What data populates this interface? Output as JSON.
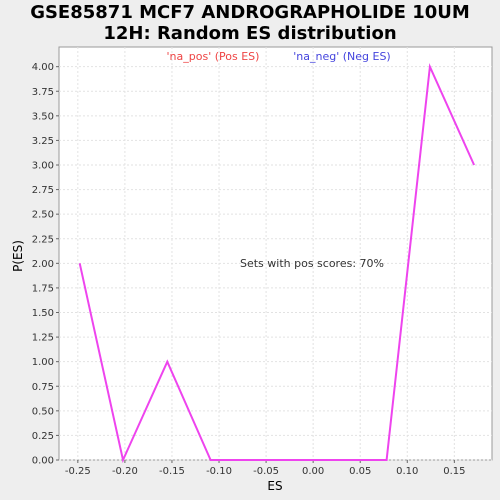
{
  "chart_data": {
    "type": "line",
    "title_line1": "GSE85871 MCF7 ANDROGRAPHOLIDE 10UM",
    "title_line2": "12H: Random ES distribution",
    "xlabel": "ES",
    "ylabel": "P(ES)",
    "xlim": [
      -0.27,
      0.19
    ],
    "ylim": [
      0,
      4.2
    ],
    "x_ticks": [
      -0.25,
      -0.2,
      -0.15,
      -0.1,
      -0.05,
      0.0,
      0.05,
      0.1,
      0.15
    ],
    "x_tick_labels": [
      "-0.25",
      "-0.20",
      "-0.15",
      "-0.10",
      "-0.05",
      "0.00",
      "0.05",
      "0.10",
      "0.15"
    ],
    "y_ticks": [
      0,
      0.25,
      0.5,
      0.75,
      1.0,
      1.25,
      1.5,
      1.75,
      2.0,
      2.25,
      2.5,
      2.75,
      3.0,
      3.25,
      3.5,
      3.75,
      4.0
    ],
    "y_tick_labels": [
      "0.00",
      "0.25",
      "0.50",
      "0.75",
      "1.00",
      "1.25",
      "1.50",
      "1.75",
      "2.00",
      "2.25",
      "2.50",
      "2.75",
      "3.00",
      "3.25",
      "3.50",
      "3.75",
      "4.00"
    ],
    "grid": true,
    "legend": [
      {
        "label": "'na_pos' (Pos ES)",
        "color": "#ee4444"
      },
      {
        "label": "'na_neg' (Neg ES)",
        "color": "#4444dd"
      }
    ],
    "annotation": "Sets with pos scores: 70%",
    "series": [
      {
        "color": "#ee44ee",
        "x": [
          -0.248,
          -0.202,
          -0.155,
          -0.109,
          -0.062,
          -0.016,
          0.031,
          0.078,
          0.124,
          0.171
        ],
        "y": [
          2.0,
          0.0,
          1.0,
          0.0,
          0.0,
          0.0,
          0.0,
          0.0,
          4.0,
          3.0
        ]
      }
    ]
  }
}
